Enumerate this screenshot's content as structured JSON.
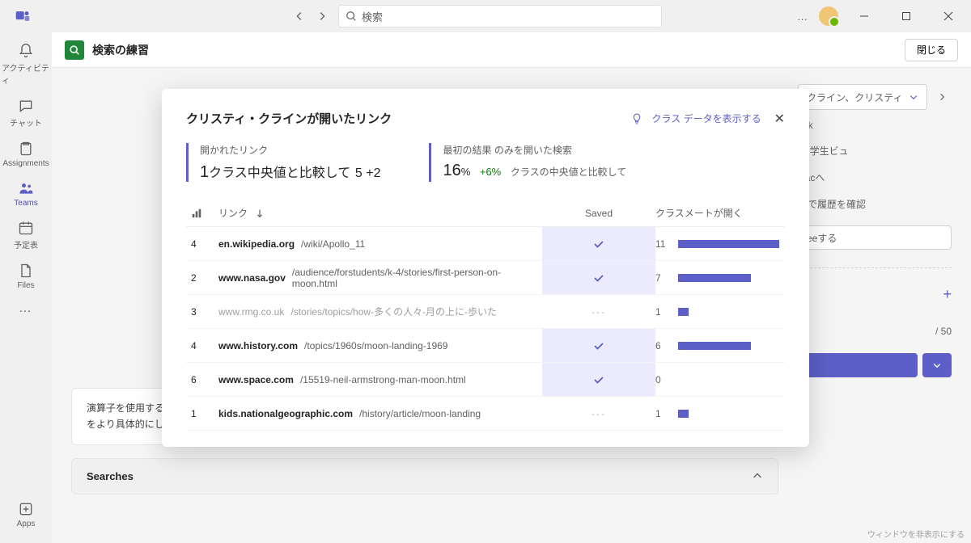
{
  "titlebar": {
    "search_placeholder": "検索",
    "more_label": "…"
  },
  "rail": {
    "items": [
      {
        "label": "アクティビティ",
        "icon": "bell"
      },
      {
        "label": "チャット",
        "icon": "chat"
      },
      {
        "label": "Assignments",
        "icon": "assignments"
      },
      {
        "label": "Teams",
        "icon": "teams",
        "active": true
      },
      {
        "label": "予定表",
        "icon": "calendar"
      },
      {
        "label": "Files",
        "icon": "files"
      }
    ],
    "more_label": "…",
    "apps_label": "Apps"
  },
  "appbar": {
    "title": "検索の練習",
    "close_label": "閉じる"
  },
  "sidebar": {
    "student_name": "クライン、クリスティ",
    "lines": [
      "ork",
      "in 学生ビュ",
      "ttacへ",
      "n で履歴を確認"
    ],
    "pill": "eeする",
    "count": "/ 50"
  },
  "reflection": {
    "text": "演算子を使用する検索は、より集中していました。時々、彼らはあまりにも集中していたので、私は戻って、少数の結果しか返さなかったため、私の検索をより具体的にしなければならなかった。"
  },
  "searches": {
    "title": "Searches"
  },
  "modal": {
    "title": "クリスティ・クラインが開いたリンク",
    "show_class_label": "クラス データを表示する",
    "stats": {
      "opened": {
        "label": "開かれたリンク",
        "value_prefix": "1",
        "value_mid": "クラス中央値と比較して",
        "value_suffix": "5 +2"
      },
      "first": {
        "label": "最初の結果 のみを開いた検索",
        "value": "16",
        "unit": "%",
        "delta": "+6%",
        "sub": "クラスの中央値と比較して"
      }
    },
    "columns": {
      "count_icon": "bars",
      "link": "リンク",
      "saved": "Saved",
      "classmates": "クラスメートが開く"
    },
    "rows": [
      {
        "count": "4",
        "domain": "en.wikipedia.org",
        "path": "/wiki/Apollo_11",
        "saved": true,
        "classmates": 11,
        "bar_pct": 95
      },
      {
        "count": "2",
        "domain": "www.nasa.gov",
        "path": "/audience/forstudents/k-4/stories/first-person-on-moon.html",
        "saved": true,
        "classmates": 7,
        "bar_pct": 68
      },
      {
        "count": "3",
        "domain": "www.rmg.co.uk",
        "path": "/stories/topics/how-多くの人々-月の上に-歩いた",
        "saved": false,
        "classmates": 1,
        "bar_pct": 10,
        "light": true
      },
      {
        "count": "4",
        "domain": "www.history.com",
        "path": "/topics/1960s/moon-landing-1969",
        "saved": true,
        "classmates": 6,
        "bar_pct": 68
      },
      {
        "count": "6",
        "domain": "www.space.com",
        "path": "/15519-neil-armstrong-man-moon.html",
        "saved": true,
        "classmates": 0,
        "bar_pct": 0
      },
      {
        "count": "1",
        "domain": "kids.nationalgeographic.com",
        "path": "/history/article/moon-landing",
        "saved": false,
        "classmates": 1,
        "bar_pct": 10
      }
    ],
    "bar_color": "#5b5fc7",
    "saved_mark": "✓",
    "unsaved_mark": "---"
  },
  "watermark": "ウィンドウを非表示にする"
}
